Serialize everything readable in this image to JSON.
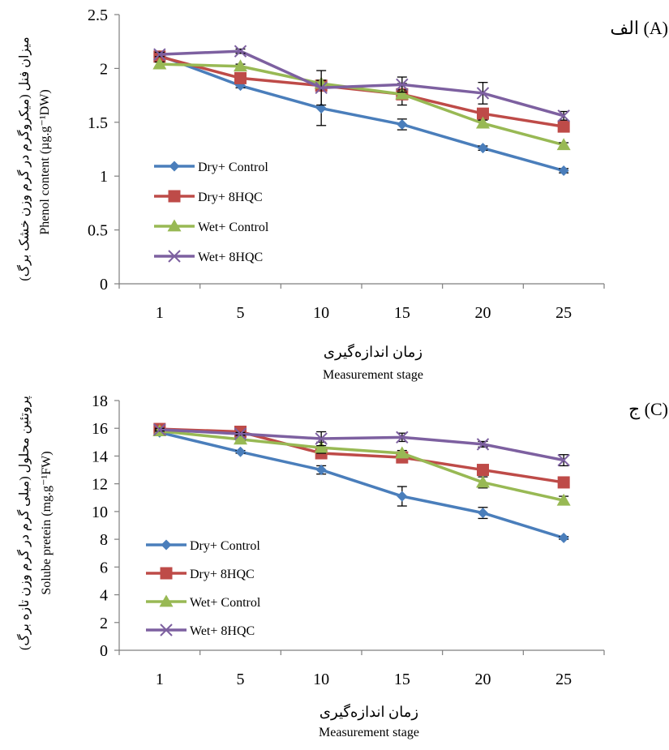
{
  "chart_data": [
    {
      "type": "line",
      "panel_label": "الف (A)",
      "categories": [
        "1",
        "5",
        "10",
        "15",
        "20",
        "25"
      ],
      "ylim": [
        0,
        2.5
      ],
      "yticks": [
        "0",
        "0.5",
        "1",
        "1.5",
        "2",
        "2.5"
      ],
      "xlabel_fa": "زمان اندازه‌گیری",
      "xlabel_en": "Measurement stage",
      "ylabel_fa": "میزان فنل (میکروگرم در گرم وزن خشک برگ)",
      "ylabel_en": "Phenol content (µg.g⁻¹DW)",
      "legend_position": "left-center",
      "series": [
        {
          "name": "Dry+ Control",
          "color": "#4a7ebb",
          "marker": "diamond",
          "values": [
            2.12,
            1.84,
            1.63,
            1.48,
            1.26,
            1.05
          ],
          "errors": [
            0.02,
            0.02,
            0.16,
            0.05,
            0.02,
            0.02
          ]
        },
        {
          "name": "Dry+ 8HQC",
          "color": "#be4b48",
          "marker": "square",
          "values": [
            2.11,
            1.91,
            1.84,
            1.76,
            1.58,
            1.46
          ],
          "errors": [
            0.02,
            0.02,
            0.03,
            0.1,
            0.03,
            0.02
          ]
        },
        {
          "name": "Wet+ Control",
          "color": "#98b954",
          "marker": "triangle",
          "values": [
            2.04,
            2.02,
            1.86,
            1.76,
            1.49,
            1.29
          ],
          "errors": [
            0.02,
            0.02,
            0.03,
            0.04,
            0.03,
            0.02
          ]
        },
        {
          "name": "Wet+ 8HQC",
          "color": "#7d60a0",
          "marker": "cross",
          "values": [
            2.13,
            2.16,
            1.82,
            1.85,
            1.77,
            1.56
          ],
          "errors": [
            0.02,
            0.02,
            0.16,
            0.07,
            0.1,
            0.04
          ]
        }
      ]
    },
    {
      "type": "line",
      "panel_label": "ج (C)",
      "categories": [
        "1",
        "5",
        "10",
        "15",
        "20",
        "25"
      ],
      "ylim": [
        0,
        18
      ],
      "yticks": [
        "0",
        "2",
        "4",
        "6",
        "8",
        "10",
        "12",
        "14",
        "16",
        "18"
      ],
      "xlabel_fa": "زمان اندازه‌گیری",
      "xlabel_en": "Measurement stage",
      "ylabel_fa": "پروتئین محلول (میلی گرم در گرم وزن تازه برگ)",
      "ylabel_en": "Solube pretein (mg.g⁻¹FW)",
      "legend_position": "bottom-left",
      "series": [
        {
          "name": "Dry+ Control",
          "color": "#4a7ebb",
          "marker": "diamond",
          "values": [
            15.7,
            14.3,
            13.0,
            11.1,
            9.9,
            8.1
          ],
          "errors": [
            0.1,
            0.1,
            0.3,
            0.7,
            0.4,
            0.1
          ]
        },
        {
          "name": "Dry+ 8HQC",
          "color": "#be4b48",
          "marker": "square",
          "values": [
            15.95,
            15.75,
            14.2,
            13.9,
            13.0,
            12.1
          ],
          "errors": [
            0.1,
            0.1,
            0.3,
            0.2,
            0.3,
            0.2
          ]
        },
        {
          "name": "Wet+ Control",
          "color": "#98b954",
          "marker": "triangle",
          "values": [
            15.8,
            15.2,
            14.6,
            14.2,
            12.1,
            10.8
          ],
          "errors": [
            0.1,
            0.1,
            0.4,
            0.2,
            0.4,
            0.3
          ]
        },
        {
          "name": "Wet+ 8HQC",
          "color": "#7d60a0",
          "marker": "cross",
          "values": [
            15.9,
            15.6,
            15.25,
            15.35,
            14.85,
            13.7
          ],
          "errors": [
            0.1,
            0.1,
            0.5,
            0.3,
            0.2,
            0.4
          ]
        }
      ]
    }
  ]
}
